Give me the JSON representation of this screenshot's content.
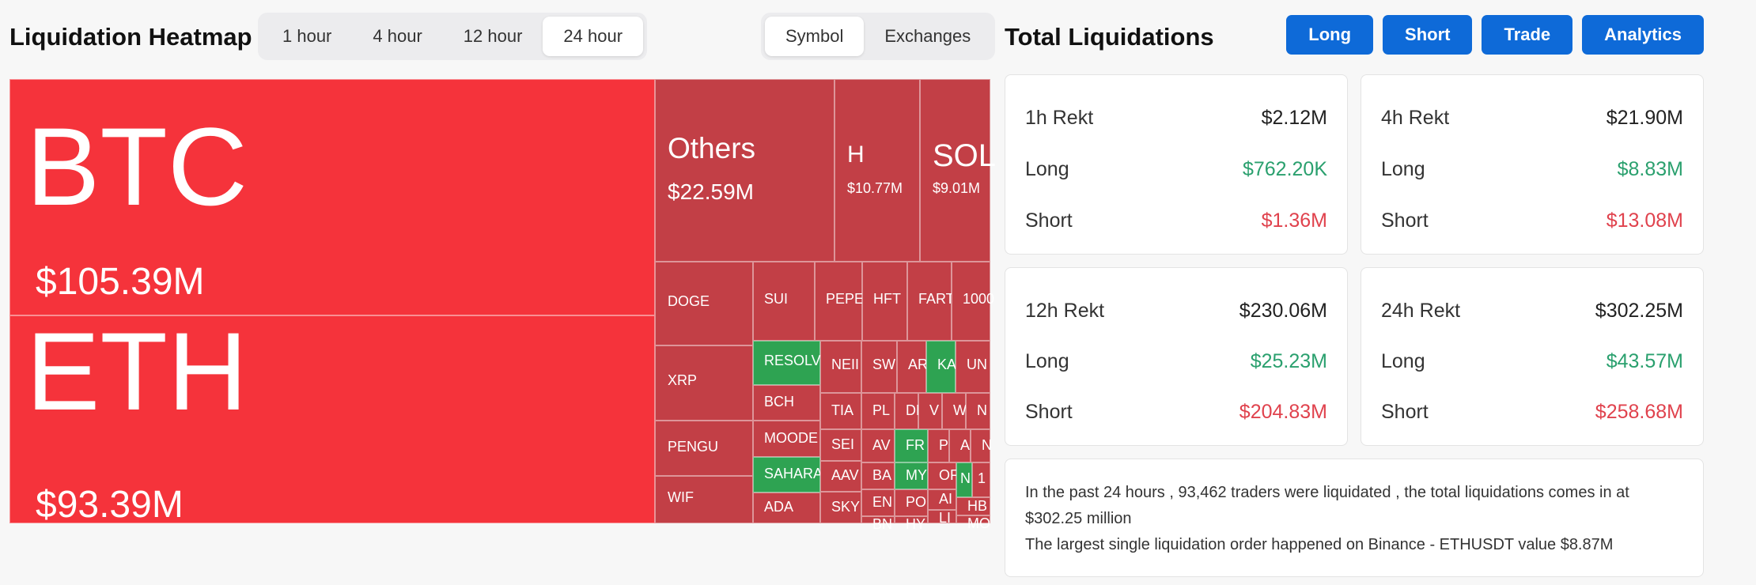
{
  "heatmap": {
    "title": "Liquidation Heatmap",
    "time_tabs": [
      {
        "label": "1 hour",
        "active": false
      },
      {
        "label": "4 hour",
        "active": false
      },
      {
        "label": "12 hour",
        "active": false
      },
      {
        "label": "24 hour",
        "active": true
      }
    ],
    "view_tabs": [
      {
        "label": "Symbol",
        "active": true
      },
      {
        "label": "Exchanges",
        "active": false
      }
    ],
    "tiles": [
      {
        "symbol": "BTC",
        "value": "$105.39M",
        "color": "#f5333b"
      },
      {
        "symbol": "ETH",
        "value": "$93.39M",
        "color": "#f5333b"
      },
      {
        "symbol": "Others",
        "value": "$22.59M",
        "color": "#c23f46"
      },
      {
        "symbol": "H",
        "value": "$10.77M",
        "color": "#c23f46"
      },
      {
        "symbol": "SOL",
        "value": "$9.01M",
        "color": "#c23f46"
      },
      {
        "symbol": "DOGE",
        "value": "",
        "color": "#c23f46"
      },
      {
        "symbol": "SUI",
        "value": "",
        "color": "#c23f46"
      },
      {
        "symbol": "PEPE",
        "value": "",
        "color": "#c23f46"
      },
      {
        "symbol": "HFT",
        "value": "",
        "color": "#c23f46"
      },
      {
        "symbol": "FART",
        "value": "",
        "color": "#c23f46"
      },
      {
        "symbol": "1000",
        "value": "",
        "color": "#c23f46"
      },
      {
        "symbol": "XRP",
        "value": "",
        "color": "#c23f46"
      },
      {
        "symbol": "RESOLV",
        "value": "",
        "color": "#2ea352"
      },
      {
        "symbol": "NEII",
        "value": "",
        "color": "#c23f46"
      },
      {
        "symbol": "SW",
        "value": "",
        "color": "#c23f46"
      },
      {
        "symbol": "AR",
        "value": "",
        "color": "#c23f46"
      },
      {
        "symbol": "KA",
        "value": "",
        "color": "#2ea352"
      },
      {
        "symbol": "UN",
        "value": "",
        "color": "#c23f46"
      },
      {
        "symbol": "BCH",
        "value": "",
        "color": "#c23f46"
      },
      {
        "symbol": "TIA",
        "value": "",
        "color": "#c23f46"
      },
      {
        "symbol": "PL",
        "value": "",
        "color": "#c23f46"
      },
      {
        "symbol": "DN",
        "value": "",
        "color": "#c23f46"
      },
      {
        "symbol": "V",
        "value": "",
        "color": "#c23f46"
      },
      {
        "symbol": "W",
        "value": "",
        "color": "#c23f46"
      },
      {
        "symbol": "N",
        "value": "",
        "color": "#c23f46"
      },
      {
        "symbol": "PENGU",
        "value": "",
        "color": "#c23f46"
      },
      {
        "symbol": "MOODE",
        "value": "",
        "color": "#c23f46"
      },
      {
        "symbol": "SEI",
        "value": "",
        "color": "#c23f46"
      },
      {
        "symbol": "AV",
        "value": "",
        "color": "#c23f46"
      },
      {
        "symbol": "FR",
        "value": "",
        "color": "#2ea352"
      },
      {
        "symbol": "P",
        "value": "",
        "color": "#c23f46"
      },
      {
        "symbol": "A",
        "value": "",
        "color": "#c23f46"
      },
      {
        "symbol": "N",
        "value": "",
        "color": "#c23f46"
      },
      {
        "symbol": "SAHARA",
        "value": "",
        "color": "#2ea352"
      },
      {
        "symbol": "BA",
        "value": "",
        "color": "#c23f46"
      },
      {
        "symbol": "MY",
        "value": "",
        "color": "#2ea352"
      },
      {
        "symbol": "OF",
        "value": "",
        "color": "#c23f46"
      },
      {
        "symbol": "N",
        "value": "",
        "color": "#2ea352"
      },
      {
        "symbol": "1",
        "value": "",
        "color": "#c23f46"
      },
      {
        "symbol": "WIF",
        "value": "",
        "color": "#c23f46"
      },
      {
        "symbol": "AAV",
        "value": "",
        "color": "#c23f46"
      },
      {
        "symbol": "EN",
        "value": "",
        "color": "#c23f46"
      },
      {
        "symbol": "PO",
        "value": "",
        "color": "#c23f46"
      },
      {
        "symbol": "AI",
        "value": "",
        "color": "#c23f46"
      },
      {
        "symbol": "HB",
        "value": "",
        "color": "#c23f46"
      },
      {
        "symbol": "ADA",
        "value": "",
        "color": "#c23f46"
      },
      {
        "symbol": "SKY",
        "value": "",
        "color": "#c23f46"
      },
      {
        "symbol": "BN",
        "value": "",
        "color": "#c23f46"
      },
      {
        "symbol": "HY",
        "value": "",
        "color": "#c23f46"
      },
      {
        "symbol": "LI",
        "value": "",
        "color": "#c23f46"
      },
      {
        "symbol": "MO",
        "value": "",
        "color": "#c23f46"
      }
    ]
  },
  "total": {
    "title": "Total Liquidations",
    "buttons": [
      "Long",
      "Short",
      "Trade",
      "Analytics"
    ],
    "cards": [
      {
        "label": "1h Rekt",
        "total": "$2.12M",
        "long_label": "Long",
        "long": "$762.20K",
        "short_label": "Short",
        "short": "$1.36M"
      },
      {
        "label": "4h Rekt",
        "total": "$21.90M",
        "long_label": "Long",
        "long": "$8.83M",
        "short_label": "Short",
        "short": "$13.08M"
      },
      {
        "label": "12h Rekt",
        "total": "$230.06M",
        "long_label": "Long",
        "long": "$25.23M",
        "short_label": "Short",
        "short": "$204.83M"
      },
      {
        "label": "24h Rekt",
        "total": "$302.25M",
        "long_label": "Long",
        "long": "$43.57M",
        "short_label": "Short",
        "short": "$258.68M"
      }
    ],
    "summary": {
      "line1": "In the past 24 hours , 93,462 traders were liquidated , the total liquidations comes in at $302.25 million",
      "line2": "The largest single liquidation order happened on Binance - ETHUSDT value $8.87M"
    },
    "colors": {
      "long": "#2aa06e",
      "short": "#e0424d",
      "button": "#0e6ad8"
    }
  }
}
